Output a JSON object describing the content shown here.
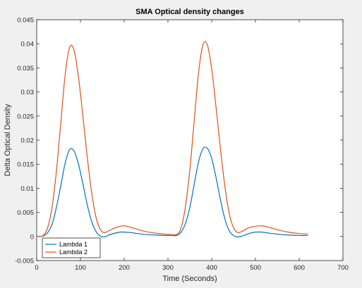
{
  "chart_data": {
    "type": "line",
    "title": "SMA Optical density changes",
    "xlabel": "Time (Seconds)",
    "ylabel": "Delta Optical Density",
    "xlim": [
      0,
      700
    ],
    "ylim": [
      -0.005,
      0.045
    ],
    "xticks": [
      0,
      100,
      200,
      300,
      400,
      500,
      600,
      700
    ],
    "yticks": [
      -0.005,
      0,
      0.005,
      0.01,
      0.015,
      0.02,
      0.025,
      0.03,
      0.035,
      0.04,
      0.045
    ],
    "xtick_labels": [
      "0",
      "100",
      "200",
      "300",
      "400",
      "500",
      "600",
      "700"
    ],
    "ytick_labels": [
      "-0.005",
      "0",
      "0.005",
      "0.01",
      "0.015",
      "0.02",
      "0.025",
      "0.03",
      "0.035",
      "0.04",
      "0.045"
    ],
    "grid": false,
    "legend_position": "bottom-left",
    "series": [
      {
        "name": "Lambda 1",
        "color": "#0072bd",
        "x": [
          5,
          15,
          25,
          35,
          45,
          55,
          65,
          75,
          85,
          95,
          105,
          115,
          125,
          135,
          145,
          155,
          165,
          180,
          190,
          200,
          215,
          230,
          250,
          270,
          290,
          310,
          320,
          330,
          340,
          350,
          360,
          370,
          380,
          390,
          400,
          410,
          420,
          430,
          440,
          450,
          460,
          470,
          485,
          500,
          515,
          530,
          550,
          575,
          600,
          620
        ],
        "y": [
          0,
          0.0001,
          0.0008,
          0.0025,
          0.006,
          0.0105,
          0.0152,
          0.018,
          0.0178,
          0.0152,
          0.0112,
          0.0068,
          0.0033,
          0.0011,
          0.0001,
          -0.0001,
          0.0003,
          0.0007,
          0.0009,
          0.0009,
          0.0008,
          0.0006,
          0.0004,
          0.0003,
          0.0002,
          0.0002,
          0.0002,
          0.0009,
          0.0027,
          0.006,
          0.0108,
          0.0155,
          0.0182,
          0.0183,
          0.0162,
          0.0122,
          0.0076,
          0.0037,
          0.0012,
          0.0002,
          -0.0001,
          0.0001,
          0.0006,
          0.0009,
          0.0009,
          0.0007,
          0.0005,
          0.0003,
          0.0002,
          0.0002
        ]
      },
      {
        "name": "Lambda 2",
        "color": "#d95319",
        "x": [
          5,
          15,
          25,
          35,
          45,
          55,
          65,
          75,
          85,
          95,
          105,
          115,
          125,
          135,
          145,
          155,
          165,
          180,
          190,
          200,
          215,
          230,
          250,
          270,
          290,
          310,
          320,
          330,
          340,
          350,
          360,
          370,
          380,
          390,
          400,
          410,
          420,
          430,
          440,
          450,
          460,
          470,
          485,
          500,
          515,
          530,
          550,
          575,
          600,
          620
        ],
        "y": [
          0,
          0.0002,
          0.0018,
          0.006,
          0.0135,
          0.0235,
          0.0335,
          0.0392,
          0.0388,
          0.0335,
          0.0255,
          0.017,
          0.0095,
          0.0042,
          0.0015,
          0.0008,
          0.0012,
          0.0018,
          0.0021,
          0.0022,
          0.0019,
          0.0015,
          0.001,
          0.0007,
          0.0005,
          0.0004,
          0.0004,
          0.0018,
          0.0062,
          0.0138,
          0.024,
          0.034,
          0.0398,
          0.0398,
          0.0348,
          0.0268,
          0.0182,
          0.0105,
          0.0048,
          0.0018,
          0.0008,
          0.0011,
          0.0018,
          0.0021,
          0.0022,
          0.0019,
          0.0014,
          0.0009,
          0.0006,
          0.0005
        ]
      }
    ]
  }
}
